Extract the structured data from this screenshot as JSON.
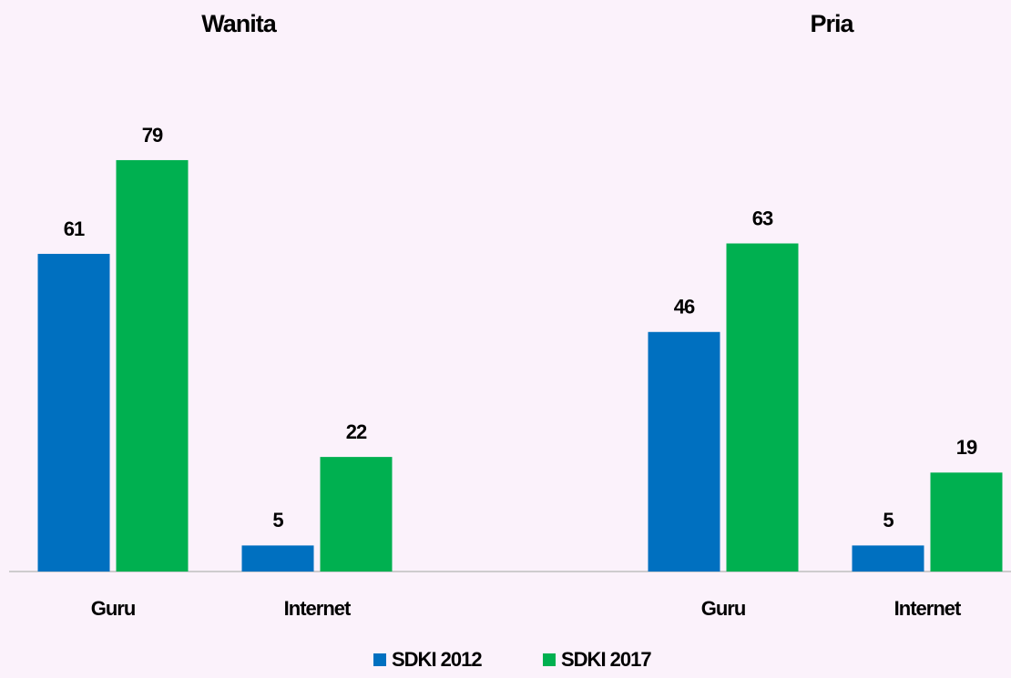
{
  "chart_data": [
    {
      "type": "bar",
      "title": "Wanita",
      "categories": [
        "Guru",
        "Internet"
      ],
      "series": [
        {
          "name": "SDKI 2012",
          "color": "#0070c0",
          "values": [
            61,
            5
          ]
        },
        {
          "name": "SDKI 2017",
          "color": "#00b050",
          "values": [
            79,
            22
          ]
        }
      ],
      "ylim": [
        0,
        90
      ]
    },
    {
      "type": "bar",
      "title": "Pria",
      "categories": [
        "Guru",
        "Internet"
      ],
      "series": [
        {
          "name": "SDKI 2012",
          "color": "#0070c0",
          "values": [
            46,
            5
          ]
        },
        {
          "name": "SDKI 2017",
          "color": "#00b050",
          "values": [
            63,
            19
          ]
        }
      ],
      "ylim": [
        0,
        90
      ]
    }
  ]
}
